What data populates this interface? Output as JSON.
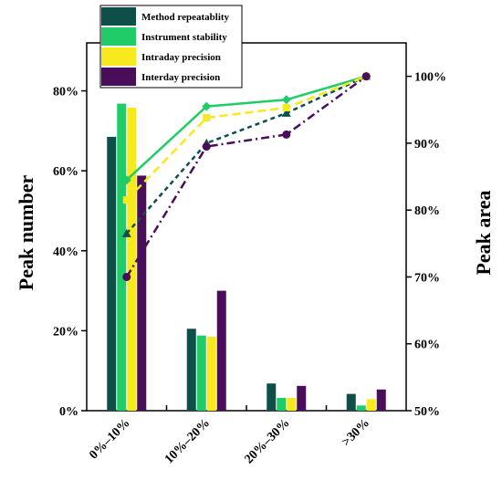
{
  "chart_data": {
    "type": "bar",
    "categories": [
      "0%–10%",
      "10%–20%",
      "20%–30%",
      ">30%"
    ],
    "ylabel_left": "Peak number",
    "ylabel_right": "Peak area",
    "ylim_left": [
      0,
      92
    ],
    "yticks_left": [
      "0%",
      "20%",
      "40%",
      "60%",
      "80%"
    ],
    "ylim_right": [
      50,
      105
    ],
    "yticks_right": [
      "50%",
      "60%",
      "70%",
      "80%",
      "90%",
      "100%"
    ],
    "legend_position": "top-left",
    "series": [
      {
        "name": "Method repeatablity",
        "color": "#0f4f4a",
        "marker": "triangle",
        "dash": "short",
        "bar_values": [
          68.5,
          20.5,
          6.8,
          4.2
        ],
        "line_values": [
          76.5,
          90,
          94.5,
          100
        ]
      },
      {
        "name": "Instrument stability",
        "color": "#20cc68",
        "marker": "diamond",
        "dash": "solid",
        "bar_values": [
          76.8,
          18.8,
          3.2,
          1.3
        ],
        "line_values": [
          84.5,
          95.5,
          96.5,
          100
        ]
      },
      {
        "name": "Intraday precision",
        "color": "#f8e81e",
        "marker": "square",
        "dash": "long",
        "bar_values": [
          75.8,
          18.5,
          3.2,
          2.9
        ],
        "line_values": [
          81.5,
          93.8,
          95.3,
          100
        ]
      },
      {
        "name": "Interday precision",
        "color": "#4a0d5a",
        "marker": "circle",
        "dash": "dashdot",
        "bar_values": [
          58.8,
          30.0,
          6.2,
          5.3
        ],
        "line_values": [
          70,
          89.5,
          91.3,
          100
        ]
      }
    ]
  }
}
